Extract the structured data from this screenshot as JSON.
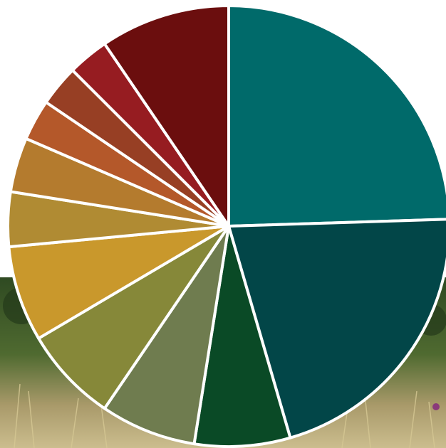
{
  "chart_data": {
    "type": "pie",
    "title": "",
    "start_angle_deg": 0,
    "direction": "clockwise",
    "slice_border_color": "#ffffff",
    "slices": [
      {
        "value": 24.5,
        "color": "#006a6a"
      },
      {
        "value": 21.0,
        "color": "#024648"
      },
      {
        "value": 7.0,
        "color": "#0a4a26"
      },
      {
        "value": 7.0,
        "color": "#6f7c4f"
      },
      {
        "value": 7.0,
        "color": "#868839"
      },
      {
        "value": 7.0,
        "color": "#c9982c"
      },
      {
        "value": 4.0,
        "color": "#b08b33"
      },
      {
        "value": 4.0,
        "color": "#b47b2e"
      },
      {
        "value": 3.0,
        "color": "#b4582a"
      },
      {
        "value": 3.0,
        "color": "#973f24"
      },
      {
        "value": 3.0,
        "color": "#961c21"
      },
      {
        "value": 9.5,
        "color": "#6b0e0e"
      }
    ]
  },
  "background": {
    "photo_icon": "meadow-photo",
    "colors": {
      "foliage_dark": "#2f4a22",
      "foliage_mid": "#4f6a30",
      "grass_light": "#a99a6a",
      "grass_pale": "#cbbd8e",
      "accent_purple": "#8a3a7a"
    }
  }
}
